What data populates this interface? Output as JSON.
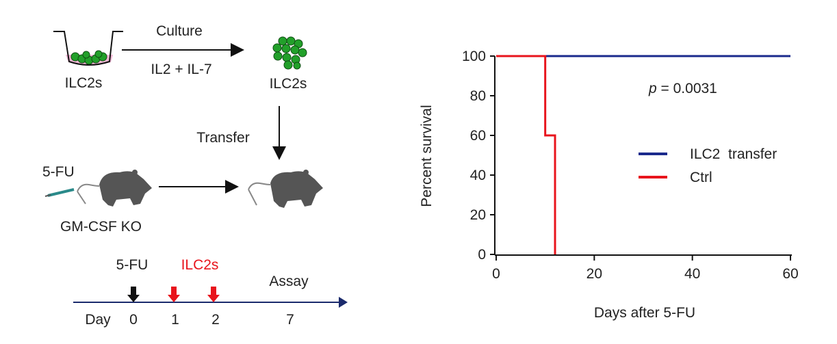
{
  "schematic": {
    "well_label": "ILC2s",
    "culture_label": "Culture",
    "cytokine_label": "IL2 + IL-7",
    "cluster_label": "ILC2s",
    "transfer_label": "Transfer",
    "injection_label": "5-FU",
    "mouse_label": "GM-CSF  KO",
    "timeline": {
      "event_5fu": "5-FU",
      "event_ilc2s": "ILC2s",
      "event_assay": "Assay",
      "day_label": "Day",
      "days": [
        "0",
        "1",
        "2",
        "7"
      ]
    },
    "colors": {
      "red": "#e8141c",
      "navy": "#1a2a6c",
      "green": "#22a02a",
      "pink": "#f2b8d6",
      "mouse": "#555555"
    }
  },
  "chart_data": {
    "type": "line",
    "subtype": "kaplan-meier step",
    "xlabel": "Days after 5-FU",
    "ylabel": "Percent survival",
    "xlim": [
      0,
      60
    ],
    "ylim": [
      0,
      100
    ],
    "xticks": [
      "0",
      "20",
      "40",
      "60"
    ],
    "yticks": [
      "0",
      "20",
      "40",
      "60",
      "80",
      "100"
    ],
    "annotation": {
      "italic": "p",
      "text": " = 0.0031"
    },
    "legend_position": "right-middle",
    "series": [
      {
        "name": "ILC2  transfer",
        "color": "#1a2a8c",
        "x": [
          0,
          60
        ],
        "y": [
          100,
          100
        ]
      },
      {
        "name": "Ctrl",
        "color": "#e8141c",
        "x": [
          0,
          10,
          10,
          12,
          12
        ],
        "y": [
          100,
          100,
          60,
          60,
          0
        ]
      }
    ]
  }
}
